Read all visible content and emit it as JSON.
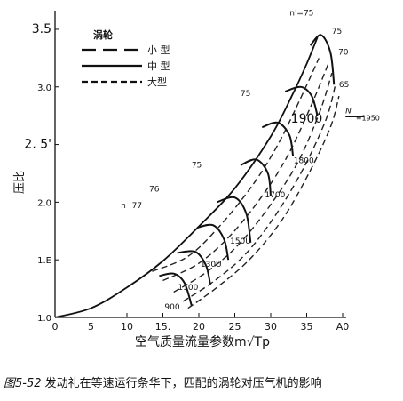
{
  "chart_data": {
    "type": "line",
    "title": "",
    "xlabel": "空气质量流量参数m√Tp",
    "ylabel": "压比",
    "xlim": [
      0,
      40
    ],
    "ylim": [
      1.0,
      3.6
    ],
    "x_ticks": [
      {
        "v": 0,
        "label": "0"
      },
      {
        "v": 5,
        "label": "5"
      },
      {
        "v": 10,
        "label": "10"
      },
      {
        "v": 15,
        "label": "15."
      },
      {
        "v": 20,
        "label": "20"
      },
      {
        "v": 25,
        "label": "25"
      },
      {
        "v": 30,
        "label": "30"
      },
      {
        "v": 35,
        "label": "35"
      },
      {
        "v": 40,
        "label": "A0"
      }
    ],
    "y_ticks": [
      {
        "v": 1.0,
        "label": "1.0"
      },
      {
        "v": 1.5,
        "label": "1.E"
      },
      {
        "v": 2.0,
        "label": "2.0"
      },
      {
        "v": 2.5,
        "label": "2. 5'"
      },
      {
        "v": 3.0,
        "label": "·3.0"
      },
      {
        "v": 3.5,
        "label": "3.5"
      }
    ],
    "legend": {
      "title": "涡轮",
      "position": "top-left",
      "entries": [
        {
          "label": "小  型",
          "style": "long-dash"
        },
        {
          "label": "中  型",
          "style": "solid"
        },
        {
          "label": "大型",
          "style": "short-dash"
        }
      ]
    },
    "surge_line": [
      [
        0,
        1.0
      ],
      [
        5,
        1.08
      ],
      [
        10,
        1.26
      ],
      [
        15,
        1.49
      ],
      [
        20,
        1.79
      ],
      [
        25,
        2.12
      ],
      [
        30,
        2.57
      ],
      [
        33,
        2.93
      ],
      [
        35,
        3.2
      ],
      [
        36.5,
        3.43
      ]
    ],
    "speed_lines": [
      {
        "label": "900",
        "points": [
          [
            14.5,
            1.36
          ],
          [
            16.5,
            1.38
          ],
          [
            18,
            1.3
          ],
          [
            19,
            1.1
          ]
        ]
      },
      {
        "label": "1100",
        "points": [
          [
            17,
            1.56
          ],
          [
            19.5,
            1.57
          ],
          [
            21,
            1.45
          ],
          [
            21.6,
            1.28
          ]
        ]
      },
      {
        "label": "130U",
        "points": [
          [
            19.8,
            1.78
          ],
          [
            22,
            1.8
          ],
          [
            23.5,
            1.68
          ],
          [
            24.1,
            1.5
          ]
        ]
      },
      {
        "label": "150U",
        "points": [
          [
            22.5,
            2.0
          ],
          [
            25,
            2.04
          ],
          [
            26.6,
            1.9
          ],
          [
            27.2,
            1.65
          ]
        ]
      },
      {
        "label": "1700",
        "points": [
          [
            25.8,
            2.32
          ],
          [
            28,
            2.37
          ],
          [
            29.6,
            2.25
          ],
          [
            30,
            2.05
          ]
        ]
      },
      {
        "label": "1800",
        "points": [
          [
            28.8,
            2.65
          ],
          [
            31,
            2.69
          ],
          [
            32.6,
            2.58
          ],
          [
            33.1,
            2.4
          ]
        ]
      },
      {
        "label": "1900",
        "points": [
          [
            32,
            2.96
          ],
          [
            34.2,
            3.0
          ],
          [
            35.7,
            2.92
          ],
          [
            36.5,
            2.75
          ]
        ]
      },
      {
        "label": "n'=75",
        "points": [
          [
            35.5,
            3.36
          ],
          [
            37,
            3.45
          ],
          [
            38.3,
            3.3
          ],
          [
            38.8,
            3.02
          ]
        ]
      }
    ],
    "efficiency_lines": [
      {
        "label": "77",
        "points": [
          [
            13.5,
            1.4
          ],
          [
            18.5,
            1.53
          ],
          [
            23,
            1.8
          ],
          [
            27.5,
            2.15
          ],
          [
            31,
            2.5
          ],
          [
            34.3,
            2.92
          ],
          [
            36.7,
            3.25
          ]
        ]
      },
      {
        "label": "76",
        "points": [
          [
            15,
            1.32
          ],
          [
            20,
            1.47
          ],
          [
            24.5,
            1.72
          ],
          [
            29,
            2.07
          ],
          [
            32.5,
            2.42
          ],
          [
            35.7,
            2.85
          ],
          [
            38,
            3.2
          ]
        ]
      },
      {
        "label": "75",
        "points": [
          [
            16.5,
            1.22
          ],
          [
            21,
            1.39
          ],
          [
            25.5,
            1.63
          ],
          [
            30,
            1.98
          ],
          [
            33.8,
            2.35
          ],
          [
            36.8,
            2.78
          ],
          [
            38.5,
            3.12
          ]
        ]
      },
      {
        "label": "70",
        "points": [
          [
            17.8,
            1.14
          ],
          [
            22,
            1.31
          ],
          [
            26.5,
            1.55
          ],
          [
            30.8,
            1.9
          ],
          [
            34.6,
            2.3
          ],
          [
            37.7,
            2.72
          ],
          [
            39,
            3.02
          ]
        ]
      },
      {
        "label": "65",
        "points": [
          [
            18.5,
            1.08
          ],
          [
            22.5,
            1.26
          ],
          [
            27,
            1.5
          ],
          [
            31.5,
            1.84
          ],
          [
            35.3,
            2.25
          ],
          [
            38.3,
            2.65
          ],
          [
            39.5,
            2.92
          ]
        ]
      }
    ],
    "annotations": [
      {
        "text": "n",
        "x": 9.5,
        "y": 1.95
      },
      {
        "text": "77",
        "x": 11.4,
        "y": 1.95
      },
      {
        "text": "76",
        "x": 13.8,
        "y": 2.09
      },
      {
        "text": "75",
        "x": 19.7,
        "y": 2.3
      },
      {
        "text": "75",
        "x": 26.5,
        "y": 2.92
      },
      {
        "text": "75",
        "x": 39.2,
        "y": 3.46
      },
      {
        "text": "70",
        "x": 40.1,
        "y": 3.28
      },
      {
        "text": "65",
        "x": 40.2,
        "y": 3.0
      },
      {
        "text": "N",
        "x": 40.8,
        "y": 2.77
      },
      {
        "text": "=1950",
        "x": 43.5,
        "y": 2.71
      },
      {
        "text": "1900",
        "x": 35.0,
        "y": 2.69
      },
      {
        "text": "1800",
        "x": 34.6,
        "y": 2.34
      },
      {
        "text": "1700",
        "x": 30.6,
        "y": 2.04
      },
      {
        "text": "150U",
        "x": 25.8,
        "y": 1.64
      },
      {
        "text": "130U",
        "x": 21.7,
        "y": 1.44
      },
      {
        "text": "1100",
        "x": 18.5,
        "y": 1.24
      },
      {
        "text": "900",
        "x": 16.3,
        "y": 1.07
      },
      {
        "text": "n'=75",
        "x": 34.3,
        "y": 3.62
      }
    ],
    "grid": false
  },
  "caption": {
    "figure_number": "图5-52",
    "text": "发动礼在等速运行条华下，匹配的涡轮对压气机的影响"
  }
}
